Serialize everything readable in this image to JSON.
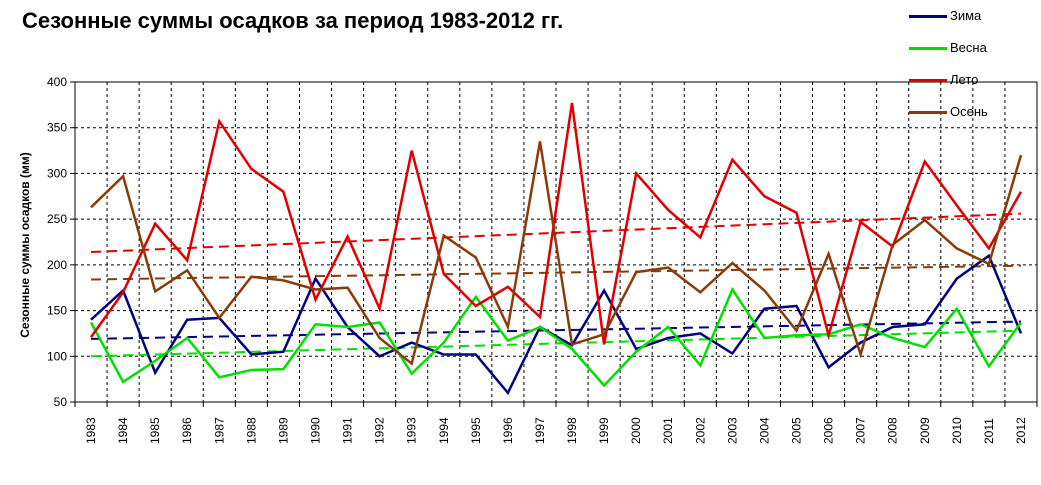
{
  "chart_data": {
    "type": "line",
    "title": "Сезонные суммы осадков за период 1983-2012 гг.",
    "ylabel": "Сезонные суммы осадков (мм)",
    "xlabel": "",
    "ylim": [
      50,
      400
    ],
    "yticks": [
      50,
      100,
      150,
      200,
      250,
      300,
      350,
      400
    ],
    "grid": true,
    "legend": "top-right",
    "x": [
      "1983",
      "1984",
      "1985",
      "1986",
      "1987",
      "1988",
      "1989",
      "1990",
      "1991",
      "1992",
      "1993",
      "1994",
      "1995",
      "1996",
      "1997",
      "1998",
      "1999",
      "2000",
      "2001",
      "2002",
      "2003",
      "2004",
      "2005",
      "2006",
      "2007",
      "2008",
      "2009",
      "2010",
      "2011",
      "2012"
    ],
    "series": [
      {
        "name": "Зима",
        "color": "#000080",
        "values": [
          140,
          172,
          82,
          140,
          142,
          102,
          105,
          185,
          132,
          100,
          115,
          102,
          102,
          60,
          132,
          112,
          172,
          108,
          120,
          125,
          103,
          152,
          155,
          88,
          115,
          132,
          135,
          185,
          210,
          125
        ],
        "trend": [
          119,
          138
        ]
      },
      {
        "name": "Весна",
        "color": "#00e000",
        "values": [
          137,
          72,
          95,
          120,
          77,
          85,
          86,
          135,
          132,
          137,
          81,
          115,
          165,
          117,
          132,
          108,
          68,
          105,
          132,
          90,
          173,
          120,
          123,
          124,
          135,
          120,
          110,
          152,
          89,
          137
        ],
        "trend": [
          100,
          128
        ]
      },
      {
        "name": "Лето",
        "color": "#e00000",
        "values": [
          121,
          170,
          245,
          205,
          357,
          305,
          280,
          162,
          231,
          152,
          325,
          190,
          155,
          176,
          143,
          377,
          113,
          300,
          260,
          230,
          315,
          275,
          257,
          123,
          247,
          220,
          313,
          265,
          218,
          280
        ],
        "trend": [
          214,
          256
        ]
      },
      {
        "name": "Осень",
        "color": "#8b3a0a",
        "values": [
          263,
          297,
          171,
          194,
          142,
          187,
          183,
          173,
          175,
          120,
          92,
          232,
          208,
          132,
          335,
          113,
          124,
          192,
          197,
          170,
          202,
          172,
          128,
          212,
          102,
          222,
          249,
          218,
          201,
          320
        ],
        "trend": [
          184,
          199
        ]
      }
    ]
  }
}
